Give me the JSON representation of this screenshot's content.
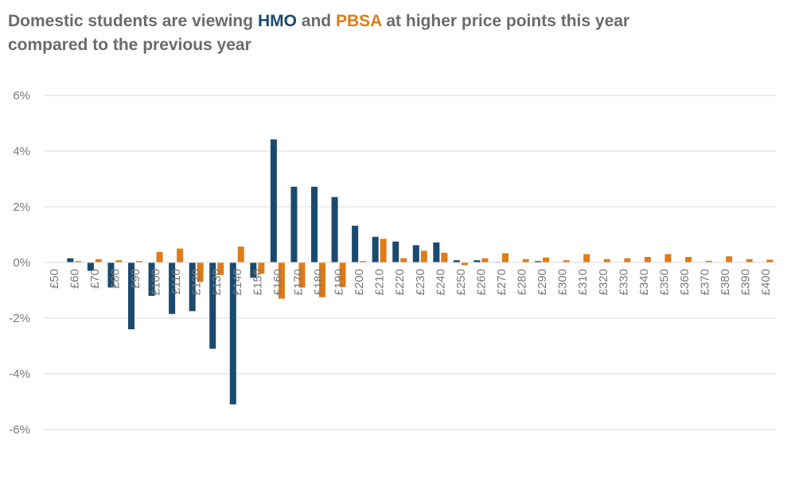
{
  "title": {
    "part1": "Domestic students are viewing ",
    "hmo": "HMO",
    "part2": " and ",
    "pbsa": "PBSA",
    "part3": " at higher price points this year compared to the previous year"
  },
  "colors": {
    "hmo": "#1a4a6e",
    "pbsa": "#e07b16",
    "grid": "#d9d9d9",
    "title": "#6b6b6b"
  },
  "chart_data": {
    "type": "bar",
    "title": "Domestic students are viewing HMO and PBSA at higher price points this year compared to the previous year",
    "xlabel": "",
    "ylabel": "",
    "ylim": [
      -6,
      6
    ],
    "y_ticks": [
      "6%",
      "4%",
      "2%",
      "0%",
      "-2%",
      "-4%",
      "-6%"
    ],
    "y_tick_values": [
      6,
      4,
      2,
      0,
      -2,
      -4,
      -6
    ],
    "grid": true,
    "categories": [
      "£50",
      "£60",
      "£70",
      "£80",
      "£90",
      "£100",
      "£110",
      "£120",
      "£130",
      "£140",
      "£150",
      "£160",
      "£170",
      "£180",
      "£190",
      "£200",
      "£210",
      "£220",
      "£230",
      "£240",
      "£250",
      "£260",
      "£270",
      "£280",
      "£290",
      "£300",
      "£310",
      "£320",
      "£330",
      "£340",
      "£350",
      "£360",
      "£370",
      "£380",
      "£390",
      "£400"
    ],
    "series": [
      {
        "key": "hmo",
        "values": [
          0,
          0.15,
          -0.3,
          -0.9,
          -2.4,
          -1.2,
          -1.85,
          -1.75,
          -3.1,
          -5.1,
          -0.55,
          4.42,
          2.72,
          2.72,
          2.35,
          1.32,
          0.92,
          0.75,
          0.62,
          0.72,
          0.08,
          0.08,
          0.02,
          0,
          0.05,
          0,
          0,
          0,
          0,
          0,
          0,
          0,
          0,
          0,
          0,
          0
        ]
      },
      {
        "key": "pbsa",
        "values": [
          0,
          0.05,
          0.12,
          0.08,
          0.05,
          0.38,
          0.5,
          -0.7,
          -0.45,
          0.57,
          -0.4,
          -1.3,
          -0.9,
          -1.25,
          -0.88,
          0.05,
          0.85,
          0.15,
          0.42,
          0.35,
          -0.1,
          0.15,
          0.33,
          0.12,
          0.18,
          0.08,
          0.3,
          0.12,
          0.15,
          0.2,
          0.3,
          0.2,
          0.06,
          0.22,
          0.12,
          0.1
        ]
      }
    ]
  }
}
